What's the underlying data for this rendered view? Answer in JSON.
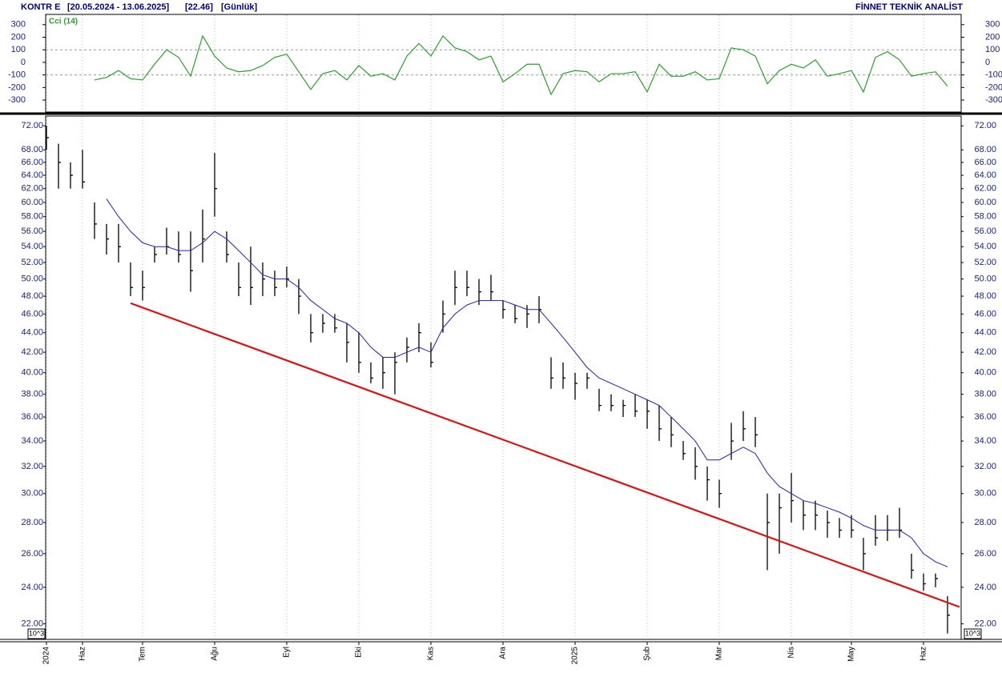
{
  "header": {
    "symbol": "KONTR E",
    "period": "[20.05.2024 - 13.06.2025]",
    "last": "[22.46]",
    "interval": "[Günlük]",
    "brand": "FİNNET TEKNİK ANALİST"
  },
  "chart_data": [
    {
      "type": "line",
      "title": "Cci (14)",
      "series": [
        {
          "color": "#2ca02c",
          "values": [
            null,
            null,
            null,
            null,
            -140,
            -120,
            -65,
            -130,
            -140,
            -15,
            100,
            40,
            -110,
            210,
            50,
            -45,
            -75,
            -65,
            -25,
            40,
            65,
            -75,
            -215,
            -90,
            -65,
            -140,
            -25,
            -110,
            -90,
            -140,
            50,
            150,
            50,
            210,
            115,
            85,
            20,
            50,
            -155,
            -90,
            -15,
            -15,
            -255,
            -90,
            -65,
            -75,
            -155,
            -90,
            -90,
            -75,
            -235,
            -15,
            -110,
            -110,
            -75,
            -140,
            -130,
            115,
            100,
            50,
            -170,
            -65,
            -15,
            -45,
            20,
            -110,
            -90,
            -65,
            -235,
            40,
            85,
            20,
            -110,
            -90,
            -75,
            -190
          ]
        }
      ],
      "ylim": [
        -395,
        375
      ],
      "yticks": [
        300,
        200,
        100,
        0,
        -100,
        -200,
        -300
      ],
      "ref_lines": [
        100,
        -100
      ]
    },
    {
      "type": "ohlc",
      "log_scale": true,
      "color": "#000000",
      "scale_label": "10^3",
      "categories": [
        "2024",
        null,
        null,
        "Haz",
        null,
        null,
        null,
        null,
        "Tem",
        null,
        null,
        null,
        null,
        null,
        "Ağu",
        null,
        null,
        null,
        null,
        null,
        "Eyl",
        null,
        null,
        null,
        null,
        null,
        "Eki",
        null,
        null,
        null,
        null,
        null,
        "Kas",
        null,
        null,
        null,
        null,
        null,
        "Ara",
        null,
        null,
        null,
        null,
        null,
        "2025",
        null,
        null,
        null,
        null,
        null,
        "Şub",
        null,
        null,
        null,
        null,
        null,
        "Mar",
        null,
        null,
        null,
        null,
        null,
        "Nis",
        null,
        null,
        null,
        null,
        "May",
        null,
        null,
        null,
        null,
        null,
        "Haz",
        null,
        null
      ],
      "high": [
        72,
        69,
        66,
        68,
        60,
        57,
        57,
        52,
        51,
        54,
        56.5,
        56,
        56,
        59,
        67.5,
        56,
        52,
        54,
        52,
        51,
        51.5,
        50,
        46,
        46,
        46,
        45,
        44,
        41,
        41.5,
        42,
        43.5,
        45,
        43,
        47.5,
        51,
        51,
        50,
        50.5,
        47.5,
        47,
        47,
        48,
        41.5,
        41,
        40,
        40,
        38.5,
        38,
        37.5,
        38,
        37.5,
        37,
        36,
        34,
        33.5,
        32,
        31,
        35.5,
        36.5,
        36,
        30,
        30,
        31.5,
        29.5,
        29.5,
        28.8,
        28.3,
        28.5,
        27,
        28.5,
        28.5,
        29,
        26,
        24.8,
        24.8,
        23.5
      ],
      "low": [
        68,
        62,
        62,
        62,
        55,
        53,
        52,
        48,
        47.5,
        52,
        53,
        52,
        48.5,
        52,
        58,
        52,
        48,
        47,
        48,
        48,
        49,
        46,
        43,
        44,
        44,
        41,
        40,
        39,
        38.5,
        38,
        41,
        42,
        40.5,
        44,
        47,
        48,
        47,
        47.5,
        45.5,
        45,
        44.5,
        45,
        38.5,
        38.5,
        37.5,
        38.5,
        36.5,
        36.5,
        36,
        36,
        35,
        34,
        33.5,
        32.5,
        31,
        29.5,
        29,
        32.5,
        34,
        33.5,
        25,
        26,
        28,
        27.5,
        27.5,
        27,
        27,
        27,
        25,
        26.5,
        26.8,
        27,
        24.5,
        23.8,
        24,
        21.5
      ],
      "close": [
        70,
        66,
        64,
        63,
        57,
        55,
        54,
        49,
        49,
        53,
        54,
        53,
        51,
        55,
        62,
        53,
        49,
        49,
        50,
        49,
        50,
        48,
        44,
        45,
        44.5,
        43,
        41,
        39.5,
        40,
        41,
        42.5,
        44,
        41,
        46,
        49,
        49,
        48.5,
        48.5,
        46.5,
        45.5,
        46,
        46.5,
        39.5,
        39.5,
        39,
        39.5,
        37,
        37,
        37,
        36.5,
        36.5,
        35,
        34.5,
        33,
        32,
        31,
        30,
        34,
        35,
        34.5,
        28,
        29,
        29.5,
        28.5,
        28.5,
        28,
        27.5,
        27.5,
        26,
        27,
        27.5,
        27.5,
        25,
        24.2,
        24.5,
        22.46
      ],
      "ma": {
        "color": "#1f1fc8",
        "values": [
          null,
          null,
          null,
          null,
          null,
          60.5,
          58,
          56,
          54.5,
          54,
          54,
          53.5,
          53.5,
          54.5,
          56,
          55,
          53.5,
          52,
          50.5,
          50,
          50,
          49,
          47.5,
          46.5,
          45.5,
          45,
          44,
          42.5,
          41.5,
          41.5,
          42,
          42.5,
          42,
          44.5,
          46,
          47,
          47.5,
          47.5,
          47.5,
          47,
          46.5,
          46.5,
          45,
          43.5,
          42,
          40.5,
          39.5,
          39,
          38.5,
          38,
          37.5,
          37,
          36,
          35,
          34,
          32.5,
          32.5,
          33,
          33.5,
          33,
          31.5,
          30.5,
          30,
          29.5,
          29.3,
          29,
          28.7,
          28.3,
          27.8,
          27.5,
          27.5,
          27.5,
          27,
          26,
          25.5,
          25.2
        ]
      },
      "trendline": {
        "color": "#dd1111",
        "values": [
          47.2,
          22.9
        ]
      },
      "ylim": [
        21.2,
        73.7
      ],
      "yticks": [
        {
          "value": 72,
          "label": "72.00"
        },
        {
          "value": 68,
          "label": "68.00"
        },
        {
          "value": 66,
          "label": "66.00"
        },
        {
          "value": 64,
          "label": "64.00"
        },
        {
          "value": 62,
          "label": "62.00"
        },
        {
          "value": 60,
          "label": "60.00"
        },
        {
          "value": 58,
          "label": "58.00"
        },
        {
          "value": 56,
          "label": "56.00"
        },
        {
          "value": 54,
          "label": "54.00"
        },
        {
          "value": 52,
          "label": "52.00"
        },
        {
          "value": 50,
          "label": "50.00"
        },
        {
          "value": 48,
          "label": "48.00"
        },
        {
          "value": 46,
          "label": "46.00"
        },
        {
          "value": 44,
          "label": "44.00"
        },
        {
          "value": 42,
          "label": "42.00"
        },
        {
          "value": 40,
          "label": "40.00"
        },
        {
          "value": 38,
          "label": "38.00"
        },
        {
          "value": 36,
          "label": "36.00"
        },
        {
          "value": 34,
          "label": "34.00"
        },
        {
          "value": 32,
          "label": "32.00"
        },
        {
          "value": 30,
          "label": "30.00"
        },
        {
          "value": 28,
          "label": "28.00"
        },
        {
          "value": 26,
          "label": "26.00"
        },
        {
          "value": 24,
          "label": "24.00"
        },
        {
          "value": 22,
          "label": "22.00"
        }
      ]
    }
  ]
}
